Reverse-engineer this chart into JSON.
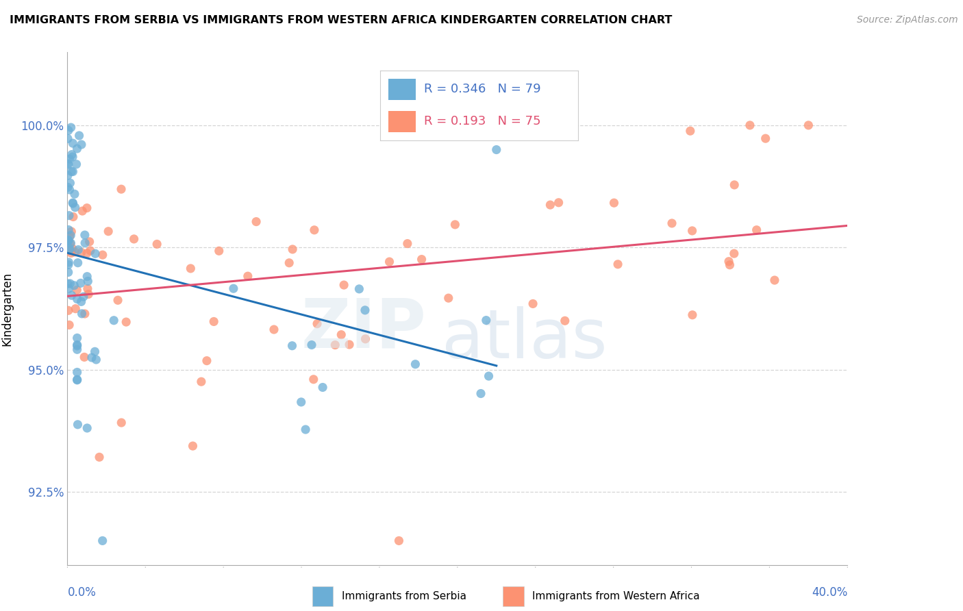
{
  "title": "IMMIGRANTS FROM SERBIA VS IMMIGRANTS FROM WESTERN AFRICA KINDERGARTEN CORRELATION CHART",
  "source": "Source: ZipAtlas.com",
  "ylabel": "Kindergarten",
  "yticks": [
    92.5,
    95.0,
    97.5,
    100.0
  ],
  "xlim": [
    0.0,
    40.0
  ],
  "ylim": [
    91.0,
    101.5
  ],
  "serbia_color": "#6baed6",
  "serbia_line_color": "#2171b5",
  "wa_color": "#fc9272",
  "wa_line_color": "#e05070",
  "legend_R_serbia": "R = 0.346",
  "legend_N_serbia": "N = 79",
  "legend_R_wa": "R = 0.193",
  "legend_N_wa": "N = 75",
  "legend_text_serbia": "R = 0.346   N = 79",
  "legend_text_wa": "R = 0.193   N = 75",
  "tick_color": "#4472c4",
  "grid_color": "#cccccc",
  "watermark_zip": "ZIP",
  "watermark_atlas": "atlas",
  "bottom_label_serbia": "Immigrants from Serbia",
  "bottom_label_wa": "Immigrants from Western Africa"
}
